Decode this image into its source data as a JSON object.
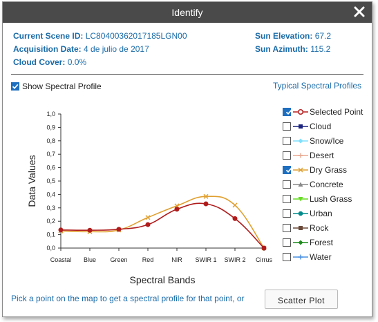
{
  "window": {
    "title": "Identify"
  },
  "info": {
    "scene_id_label": "Current Scene ID:",
    "scene_id": "LC80400362017185LGN00",
    "acq_label": "Acquisition Date:",
    "acq_date": "4 de julio de 2017",
    "cloud_label": "Cloud Cover:",
    "cloud": "0.0%",
    "elev_label": "Sun Elevation:",
    "elev": "67.2",
    "azimuth_label": "Sun Azimuth:",
    "azimuth": "115.2"
  },
  "controls": {
    "show_profile_label": "Show Spectral Profile",
    "show_profile_checked": true,
    "typical_link": "Typical Spectral Profiles"
  },
  "legend": [
    {
      "label": "Selected Point",
      "checked": true,
      "color": "#b71c1c",
      "marker": "circle-open"
    },
    {
      "label": "Cloud",
      "checked": false,
      "color": "#1a237e",
      "marker": "square"
    },
    {
      "label": "Snow/Ice",
      "checked": false,
      "color": "#7fdfff",
      "marker": "diamond"
    },
    {
      "label": "Desert",
      "checked": false,
      "color": "#e8a890",
      "marker": "plus"
    },
    {
      "label": "Dry Grass",
      "checked": true,
      "color": "#e0a030",
      "marker": "x"
    },
    {
      "label": "Concrete",
      "checked": false,
      "color": "#888888",
      "marker": "triangle"
    },
    {
      "label": "Lush Grass",
      "checked": false,
      "color": "#66dd22",
      "marker": "triangle-down"
    },
    {
      "label": "Urban",
      "checked": false,
      "color": "#008b8b",
      "marker": "circle"
    },
    {
      "label": "Rock",
      "checked": false,
      "color": "#6b4a3a",
      "marker": "square"
    },
    {
      "label": "Forest",
      "checked": false,
      "color": "#1b8a1b",
      "marker": "diamond"
    },
    {
      "label": "Water",
      "checked": false,
      "color": "#4a90e2",
      "marker": "plus"
    }
  ],
  "chart_data": {
    "type": "line",
    "xlabel": "Spectral Bands",
    "ylabel": "Data Values",
    "categories": [
      "Coastal",
      "Blue",
      "Green",
      "Red",
      "NIR",
      "SWIR 1",
      "SWIR 2",
      "Cirrus"
    ],
    "ylim": [
      0,
      1
    ],
    "yticks": [
      "0,0",
      "0,1",
      "0,2",
      "0,3",
      "0,4",
      "0,5",
      "0,6",
      "0,7",
      "0,8",
      "0,9",
      "1,0"
    ],
    "series": [
      {
        "name": "Selected Point",
        "color": "#b01c1c",
        "marker": "circle",
        "values": [
          0.135,
          0.133,
          0.14,
          0.175,
          0.29,
          0.33,
          0.22,
          0.0
        ]
      },
      {
        "name": "Dry Grass",
        "color": "#e0a030",
        "marker": "x",
        "values": [
          0.128,
          0.122,
          0.135,
          0.228,
          0.315,
          0.385,
          0.32,
          0.0
        ]
      }
    ]
  },
  "footer": {
    "hint": "Pick a point on the map to get a spectral profile for that point, or",
    "scatter_button": "Scatter Plot"
  }
}
